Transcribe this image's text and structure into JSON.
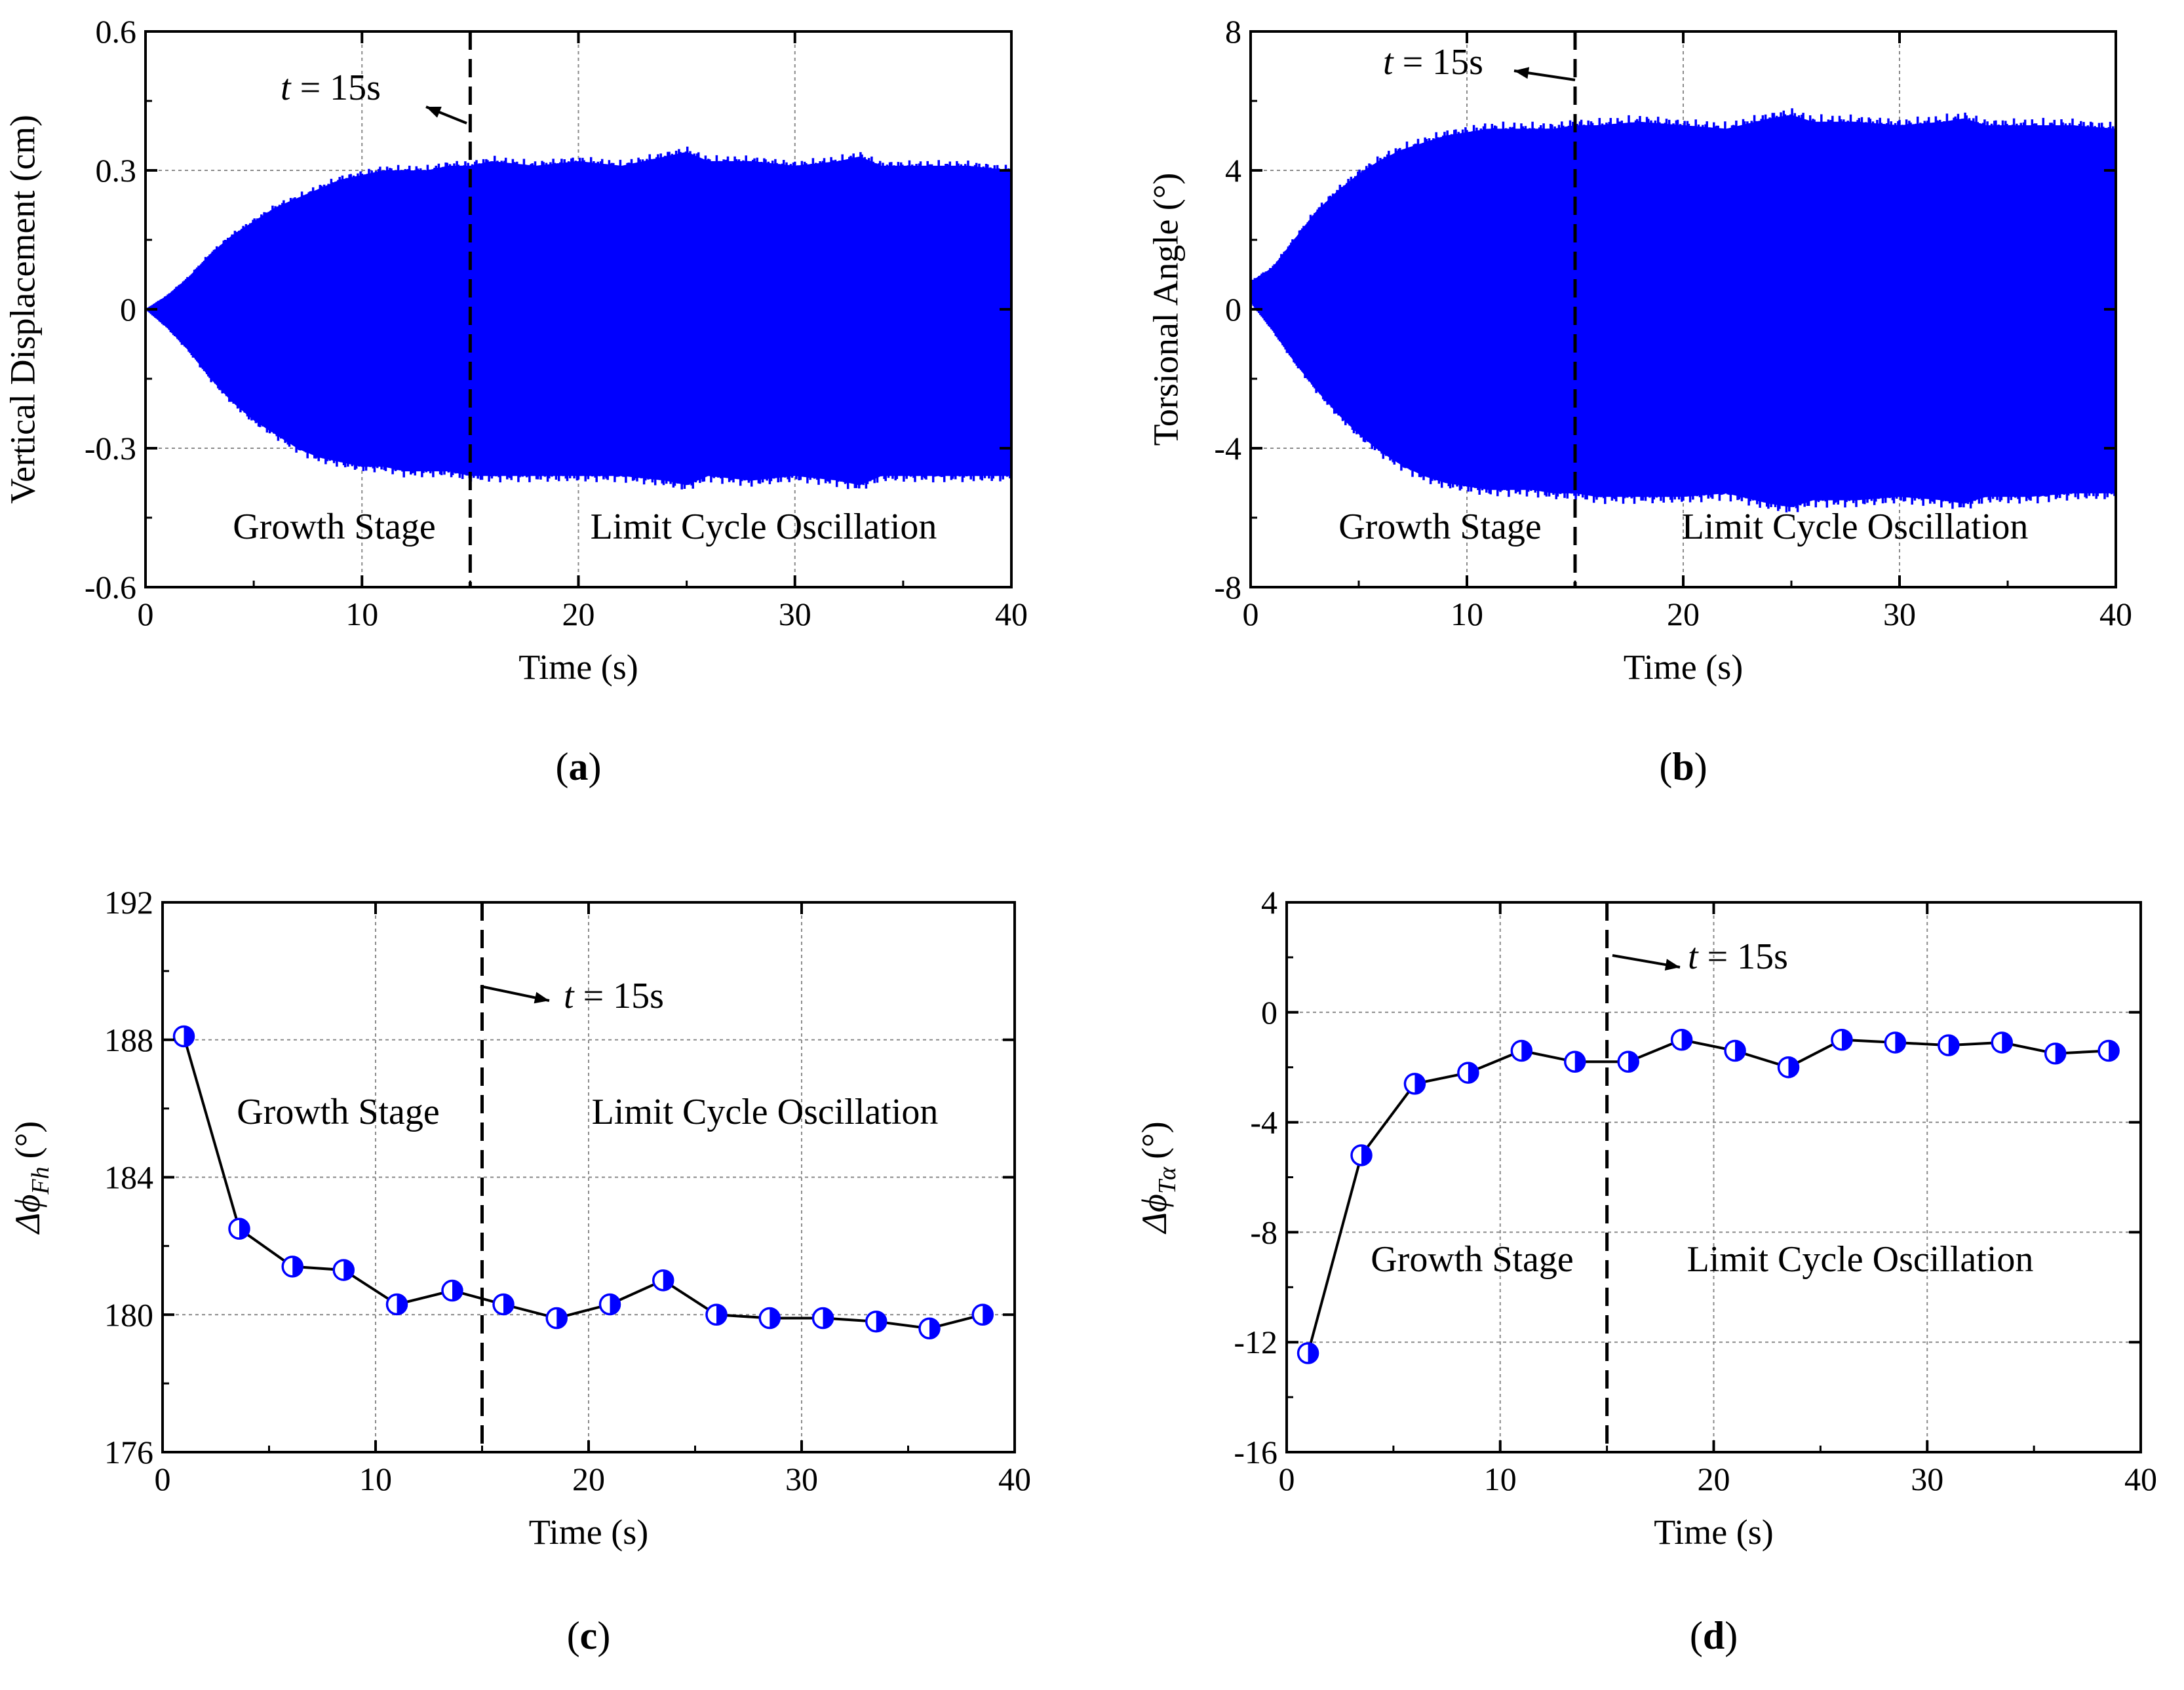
{
  "chart_data": [
    {
      "id": "a",
      "type": "line",
      "panel_label": "a",
      "xlabel": "Time (s)",
      "ylabel": "Vertical Displacement (cm)",
      "xlim": [
        0,
        40
      ],
      "ylim": [
        -0.6,
        0.6
      ],
      "xticks": [
        "0",
        "10",
        "20",
        "30",
        "40"
      ],
      "yticks": [
        "-0.6",
        "-0.3",
        "0",
        "0.3",
        "0.6"
      ],
      "grid": true,
      "marker_time": 15,
      "annotation": "t = 15s",
      "annotation_t": "t",
      "annotation_rest": " = 15s",
      "stage_labels": [
        "Growth Stage",
        "Limit Cycle Oscillation"
      ],
      "series": [
        {
          "name": "Vertical Displacement",
          "color": "#0000ff",
          "envelope_time": [
            0,
            1,
            2,
            3,
            4,
            5,
            6,
            7,
            8,
            9,
            10,
            11,
            12,
            13,
            14,
            15,
            16,
            18,
            20,
            22,
            24,
            25,
            26,
            28,
            30,
            32,
            33,
            34,
            36,
            38,
            40
          ],
          "envelope_upper": [
            0,
            0.03,
            0.07,
            0.12,
            0.16,
            0.19,
            0.22,
            0.24,
            0.26,
            0.28,
            0.29,
            0.3,
            0.3,
            0.3,
            0.31,
            0.31,
            0.32,
            0.31,
            0.32,
            0.31,
            0.33,
            0.34,
            0.32,
            0.32,
            0.31,
            0.32,
            0.33,
            0.31,
            0.31,
            0.31,
            0.3
          ],
          "envelope_lower": [
            0,
            -0.04,
            -0.09,
            -0.15,
            -0.2,
            -0.24,
            -0.27,
            -0.3,
            -0.32,
            -0.33,
            -0.34,
            -0.34,
            -0.35,
            -0.35,
            -0.35,
            -0.36,
            -0.36,
            -0.36,
            -0.36,
            -0.36,
            -0.37,
            -0.38,
            -0.36,
            -0.37,
            -0.36,
            -0.37,
            -0.38,
            -0.36,
            -0.36,
            -0.36,
            -0.36
          ]
        }
      ]
    },
    {
      "id": "b",
      "type": "line",
      "panel_label": "b",
      "xlabel": "Time (s)",
      "ylabel": "Torsional Angle (°)",
      "xlim": [
        0,
        40
      ],
      "ylim": [
        -8,
        8
      ],
      "xticks": [
        "0",
        "10",
        "20",
        "30",
        "40"
      ],
      "yticks": [
        "-8",
        "-4",
        "0",
        "4",
        "8"
      ],
      "grid": true,
      "marker_time": 15,
      "annotation": "t = 15s",
      "annotation_t": "t",
      "annotation_rest": " = 15s",
      "stage_labels": [
        "Growth Stage",
        "Limit Cycle Oscillation"
      ],
      "series": [
        {
          "name": "Torsional Angle",
          "color": "#0000ff",
          "envelope_time": [
            0,
            1,
            2,
            3,
            4,
            5,
            6,
            7,
            8,
            9,
            10,
            11,
            12,
            13,
            14,
            15,
            16,
            18,
            20,
            22,
            24,
            25,
            26,
            28,
            30,
            32,
            33,
            34,
            36,
            38,
            40
          ],
          "envelope_upper": [
            0.8,
            1.2,
            2.0,
            2.8,
            3.4,
            3.9,
            4.3,
            4.6,
            4.8,
            5.0,
            5.1,
            5.2,
            5.2,
            5.2,
            5.2,
            5.3,
            5.3,
            5.4,
            5.3,
            5.2,
            5.5,
            5.6,
            5.4,
            5.4,
            5.3,
            5.4,
            5.5,
            5.3,
            5.3,
            5.3,
            5.2
          ],
          "envelope_lower": [
            0.2,
            -0.6,
            -1.5,
            -2.3,
            -3.0,
            -3.6,
            -4.1,
            -4.5,
            -4.8,
            -5.0,
            -5.1,
            -5.2,
            -5.2,
            -5.2,
            -5.3,
            -5.3,
            -5.4,
            -5.4,
            -5.4,
            -5.3,
            -5.6,
            -5.7,
            -5.5,
            -5.5,
            -5.4,
            -5.5,
            -5.6,
            -5.4,
            -5.4,
            -5.3,
            -5.3
          ]
        }
      ]
    },
    {
      "id": "c",
      "type": "line",
      "panel_label": "c",
      "xlabel": "Time (s)",
      "ylabel": "Δϕ",
      "ylabel_sub": "Fh",
      "ylabel_unit": "(°)",
      "xlim": [
        0,
        40
      ],
      "ylim": [
        176,
        192
      ],
      "xticks": [
        "0",
        "10",
        "20",
        "30",
        "40"
      ],
      "yticks": [
        "176",
        "180",
        "184",
        "188",
        "192"
      ],
      "grid": true,
      "marker_time": 15,
      "annotation": "t = 15s",
      "annotation_t": "t",
      "annotation_rest": " = 15s",
      "stage_labels": [
        "Growth Stage",
        "Limit Cycle Oscillation"
      ],
      "series": [
        {
          "name": "Δϕ_Fh",
          "color": "#000000",
          "marker_color": "#0000ff",
          "x": [
            1.0,
            3.6,
            6.1,
            8.5,
            11.0,
            13.6,
            16.0,
            18.5,
            21.0,
            23.5,
            26.0,
            28.5,
            31.0,
            33.5,
            36.0,
            38.5
          ],
          "y": [
            188.1,
            182.5,
            181.4,
            181.3,
            180.3,
            180.7,
            180.3,
            179.9,
            180.3,
            181.0,
            180.0,
            179.9,
            179.9,
            179.8,
            179.6,
            180.0
          ]
        }
      ]
    },
    {
      "id": "d",
      "type": "line",
      "panel_label": "d",
      "xlabel": "Time (s)",
      "ylabel": "Δϕ",
      "ylabel_sub": "Tα",
      "ylabel_unit": "(°)",
      "xlim": [
        0,
        40
      ],
      "ylim": [
        -16,
        4
      ],
      "xticks": [
        "0",
        "10",
        "20",
        "30",
        "40"
      ],
      "yticks": [
        "-16",
        "-12",
        "-8",
        "-4",
        "0",
        "4"
      ],
      "grid": true,
      "marker_time": 15,
      "annotation": "t = 15s",
      "annotation_t": "t",
      "annotation_rest": " = 15s",
      "stage_labels": [
        "Growth Stage",
        "Limit Cycle Oscillation"
      ],
      "series": [
        {
          "name": "Δϕ_Tα",
          "color": "#000000",
          "marker_color": "#0000ff",
          "x": [
            1.0,
            3.5,
            6.0,
            8.5,
            11.0,
            13.5,
            16.0,
            18.5,
            21.0,
            23.5,
            26.0,
            28.5,
            31.0,
            33.5,
            36.0,
            38.5
          ],
          "y": [
            -12.4,
            -5.2,
            -2.6,
            -2.2,
            -1.4,
            -1.8,
            -1.8,
            -1.0,
            -1.4,
            -2.0,
            -1.0,
            -1.1,
            -1.2,
            -1.1,
            -1.5,
            -1.4
          ]
        }
      ]
    }
  ]
}
